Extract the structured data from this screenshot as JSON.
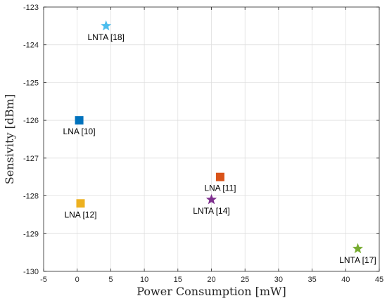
{
  "chart_data": {
    "type": "scatter",
    "xlabel": "Power Consumption [mW]",
    "ylabel": "Sensivity [dBm]",
    "xlim": [
      -5,
      45
    ],
    "ylim": [
      -130,
      -123
    ],
    "x_ticks": [
      "-5",
      "0",
      "5",
      "10",
      "15",
      "20",
      "25",
      "30",
      "35",
      "40",
      "45"
    ],
    "y_ticks": [
      "-123",
      "-124",
      "-125",
      "-126",
      "-127",
      "-128",
      "-129",
      "-130"
    ],
    "grid": true,
    "points": [
      {
        "label": "LNTA [18]",
        "x": 4.3,
        "y": -123.5,
        "marker": "star",
        "color": "#4DBEEE",
        "label_position": "below"
      },
      {
        "label": "LNA [10]",
        "x": 0.3,
        "y": -126.0,
        "marker": "square",
        "color": "#0072BD",
        "label_position": "below"
      },
      {
        "label": "LNA [11]",
        "x": 21.3,
        "y": -127.5,
        "marker": "square",
        "color": "#D95319",
        "label_position": "below"
      },
      {
        "label": "LNTA [14]",
        "x": 20.0,
        "y": -128.1,
        "marker": "star",
        "color": "#7E2F8E",
        "label_position": "below"
      },
      {
        "label": "LNA [12]",
        "x": 0.5,
        "y": -128.2,
        "marker": "square",
        "color": "#EDB120",
        "label_position": "below"
      },
      {
        "label": "LNTA [17]",
        "x": 41.8,
        "y": -129.4,
        "marker": "star",
        "color": "#77AC30",
        "label_position": "below"
      }
    ]
  }
}
